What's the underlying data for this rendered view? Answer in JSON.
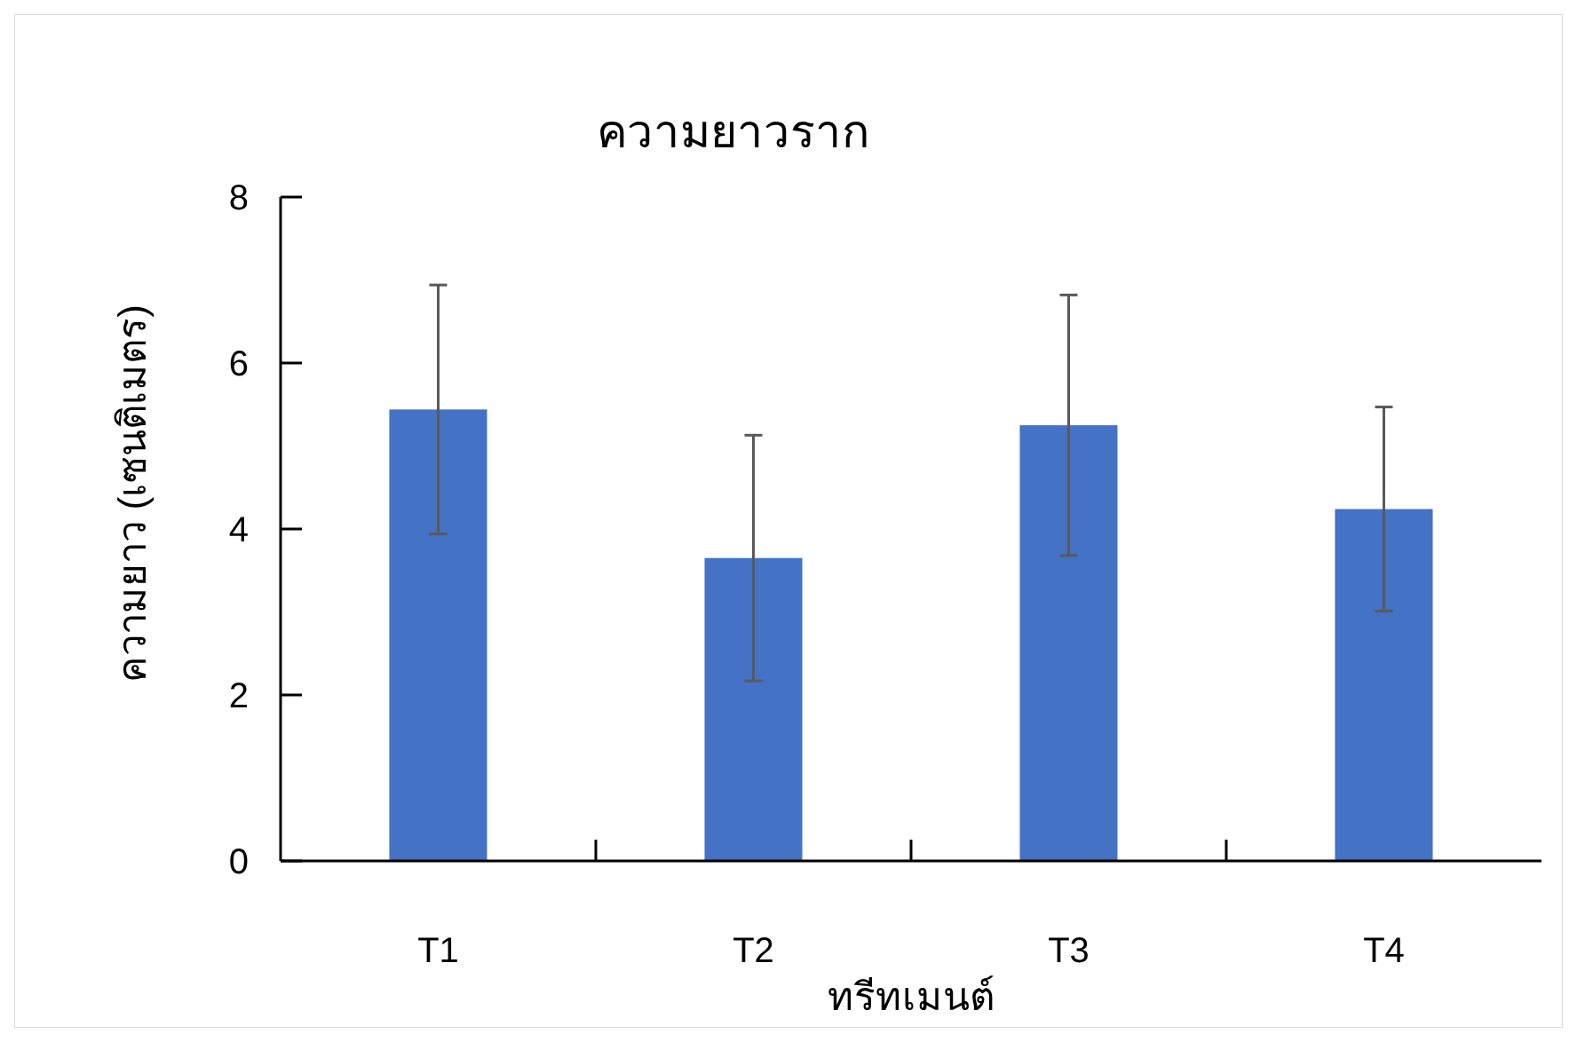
{
  "chart_data": {
    "type": "bar",
    "title": "ความยาวราก",
    "xlabel": "ทรีทเมนต์",
    "ylabel": "ความยาว (เซนติเมตร)",
    "categories": [
      "T1",
      "T2",
      "T3",
      "T4"
    ],
    "values": [
      5.44,
      3.65,
      5.25,
      4.24
    ],
    "errors": [
      1.5,
      1.48,
      1.57,
      1.23
    ],
    "color": "#4472c4",
    "ylim": [
      0,
      8
    ],
    "yticks": [
      0,
      2,
      4,
      6,
      8
    ],
    "grid": false
  }
}
